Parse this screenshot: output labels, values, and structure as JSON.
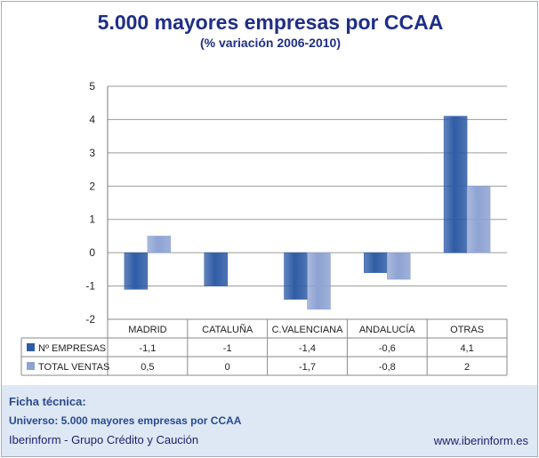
{
  "chart_data": {
    "type": "bar",
    "title": "5.000 mayores empresas por CCAA",
    "subtitle": "(% variación 2006-2010)",
    "categories": [
      "MADRID",
      "CATALUÑA",
      "C.VALENCIANA",
      "ANDALUCÍA",
      "OTRAS"
    ],
    "series": [
      {
        "name": "Nº EMPRESAS",
        "values": [
          -1.1,
          -1,
          -1.4,
          -0.6,
          4.1
        ],
        "labels": [
          "-1,1",
          "-1",
          "-1,4",
          "-0,6",
          "4,1"
        ],
        "color": "#2f5ca6"
      },
      {
        "name": "TOTAL VENTAS",
        "values": [
          0.5,
          0,
          -1.7,
          -0.8,
          2
        ],
        "labels": [
          "0,5",
          "0",
          "-1,7",
          "-0,8",
          "2"
        ],
        "color": "#8ea3d2"
      }
    ],
    "ylim": [
      -2,
      5
    ],
    "yticks": [
      -2,
      -1,
      0,
      1,
      2,
      3,
      4,
      5
    ],
    "grid": true,
    "legend": "data-table"
  },
  "footer": {
    "ficha": "Ficha técnica:",
    "universo": "Universo: 5.000 mayores empresas por CCAA",
    "company": "Iberinform - Grupo Crédito y Caución",
    "website": "www.iberinform.es"
  },
  "colors": {
    "title": "#1f2f86",
    "footer_bg": "#dde8f4",
    "grid": "#9a9a9a"
  }
}
